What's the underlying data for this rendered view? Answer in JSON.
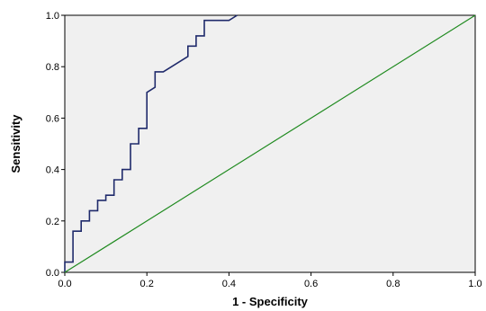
{
  "chart_data": {
    "type": "line",
    "title": "",
    "xlabel": "1 - Specificity",
    "ylabel": "Sensitivity",
    "xlim": [
      0.0,
      1.0
    ],
    "ylim": [
      0.0,
      1.0
    ],
    "x_ticks": [
      "0.0",
      "0.2",
      "0.4",
      "0.6",
      "0.8",
      "1.0"
    ],
    "y_ticks": [
      "0.0",
      "0.2",
      "0.4",
      "0.6",
      "0.8",
      "1.0"
    ],
    "grid": false,
    "legend": "none",
    "plot_background": "#f0f0f0",
    "series": [
      {
        "color": "#1f2a6b",
        "style": "step",
        "x": [
          0.0,
          0.0,
          0.02,
          0.02,
          0.04,
          0.04,
          0.06,
          0.06,
          0.08,
          0.08,
          0.1,
          0.1,
          0.12,
          0.12,
          0.14,
          0.14,
          0.16,
          0.16,
          0.18,
          0.18,
          0.2,
          0.2,
          0.22,
          0.22,
          0.24,
          0.3,
          0.3,
          0.32,
          0.32,
          0.34,
          0.34,
          0.36,
          0.4,
          0.42,
          0.42
        ],
        "y": [
          0.0,
          0.04,
          0.04,
          0.16,
          0.16,
          0.2,
          0.2,
          0.24,
          0.24,
          0.28,
          0.28,
          0.3,
          0.3,
          0.36,
          0.36,
          0.4,
          0.4,
          0.5,
          0.5,
          0.56,
          0.56,
          0.7,
          0.72,
          0.78,
          0.78,
          0.84,
          0.88,
          0.88,
          0.92,
          0.92,
          0.98,
          0.98,
          0.98,
          1.0,
          1.0
        ]
      },
      {
        "color": "#1f8a1f",
        "style": "line",
        "x": [
          0.0,
          1.0
        ],
        "y": [
          0.0,
          1.0
        ]
      }
    ]
  }
}
